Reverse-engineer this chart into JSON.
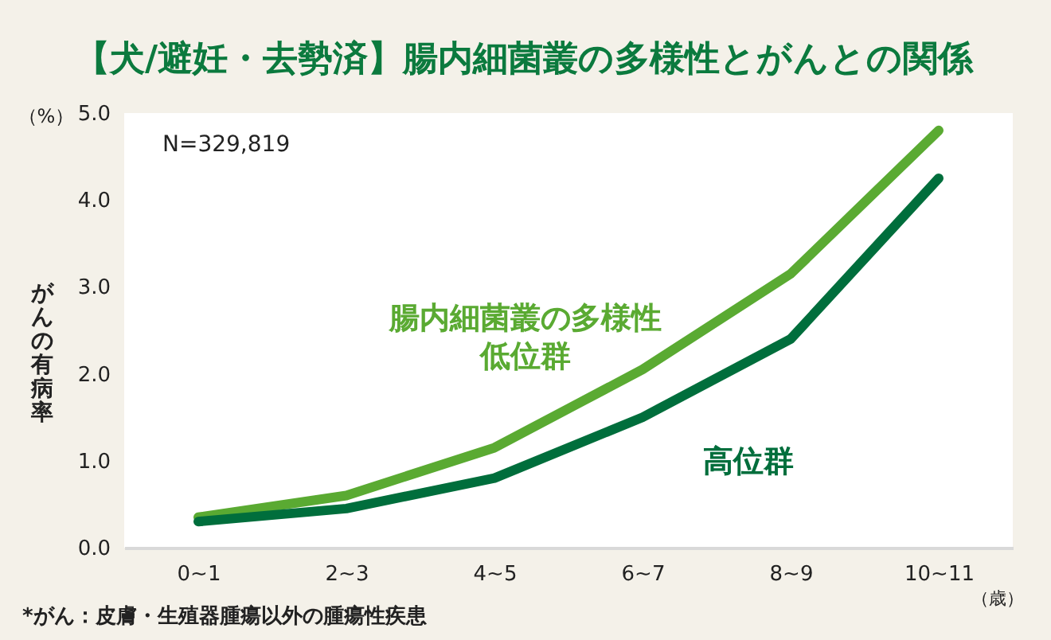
{
  "chart_data": {
    "type": "line",
    "title": "【犬/避妊・去勢済】腸内細菌叢の多様性とがんとの関係",
    "xlabel": "（歳）",
    "ylabel": "がんの有病率",
    "categories": [
      "0~1",
      "2~3",
      "4~5",
      "6~7",
      "8~9",
      "10~11"
    ],
    "series": [
      {
        "name": "腸内細菌叢の多様性低位群",
        "color": "#5aaa32",
        "values": [
          0.35,
          0.6,
          1.15,
          2.05,
          3.15,
          4.8
        ]
      },
      {
        "name": "高位群",
        "color": "#006e3c",
        "values": [
          0.3,
          0.45,
          0.8,
          1.5,
          2.4,
          4.25
        ]
      }
    ],
    "ylim": [
      0,
      5
    ],
    "yticks": [
      {
        "value": 0,
        "label": "0.0"
      },
      {
        "value": 1,
        "label": "1.0"
      },
      {
        "value": 2,
        "label": "2.0"
      },
      {
        "value": 3,
        "label": "3.0"
      },
      {
        "value": 4,
        "label": "4.0"
      },
      {
        "value": 5,
        "label": "5.0"
      }
    ],
    "grid": false,
    "legend": false,
    "marker": "none",
    "line_style": "solid",
    "annotations": [
      "N=329,819",
      "（%）",
      "*がん：皮膚・生殖器腫瘍以外の腫瘍性疾患"
    ]
  }
}
